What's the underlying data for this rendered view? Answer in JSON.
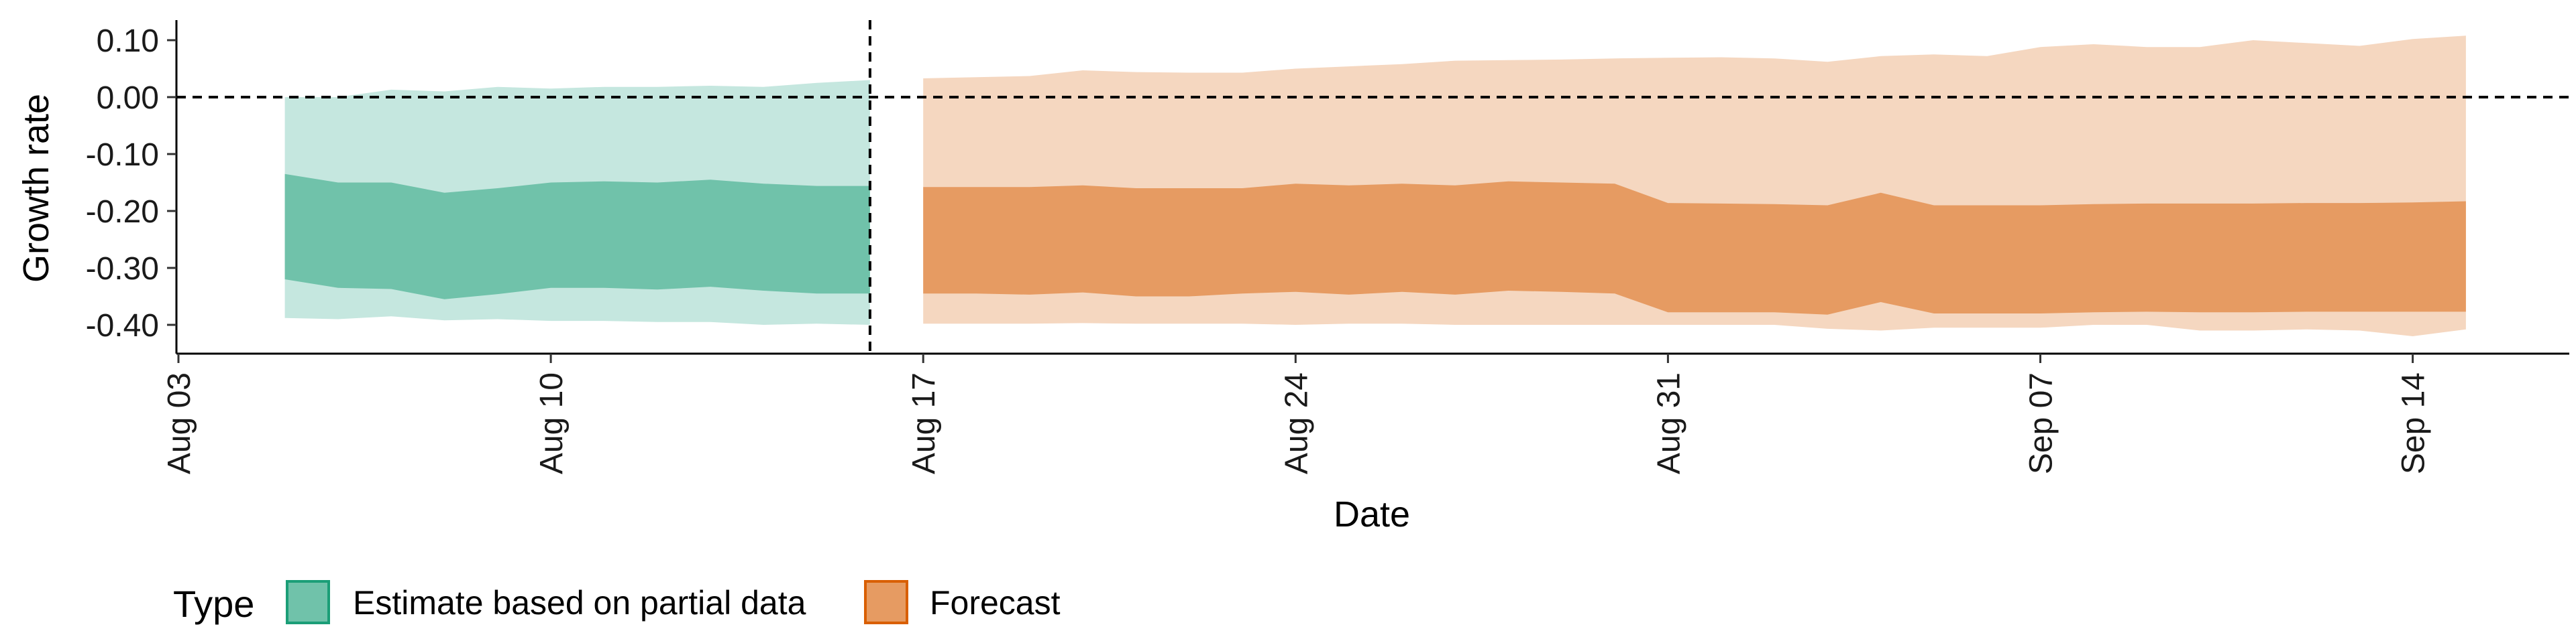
{
  "chart_data": {
    "type": "area",
    "xlabel": "Date",
    "ylabel": "Growth rate",
    "x_ticks": [
      "Aug 03",
      "Aug 10",
      "Aug 17",
      "Aug 24",
      "Aug 31",
      "Sep 07",
      "Sep 14"
    ],
    "y_ticks": [
      "0.10",
      "0.00",
      "-0.10",
      "-0.20",
      "-0.30",
      "-0.40"
    ],
    "ylim": [
      -0.45,
      0.135
    ],
    "xlim": [
      "2020-08-03",
      "2020-09-16"
    ],
    "reference_lines": {
      "horizontal_y": 0,
      "vertical_date": "2020-08-16"
    },
    "legend": {
      "title": "Type",
      "position": "bottom-left",
      "entries": [
        "Estimate based on partial data",
        "Forecast"
      ]
    },
    "series": [
      {
        "name": "Estimate based on partial data",
        "color_inner": "#70c2aa",
        "color_outer": "#c5e7df",
        "color_border": "#1b9e77",
        "x": [
          "2020-08-05",
          "2020-08-06",
          "2020-08-07",
          "2020-08-08",
          "2020-08-09",
          "2020-08-10",
          "2020-08-11",
          "2020-08-12",
          "2020-08-13",
          "2020-08-14",
          "2020-08-15",
          "2020-08-16"
        ],
        "outer_upper": [
          0.0,
          0.0,
          0.013,
          0.01,
          0.018,
          0.015,
          0.018,
          0.018,
          0.02,
          0.018,
          0.025,
          0.03
        ],
        "inner_upper": [
          -0.135,
          -0.15,
          -0.15,
          -0.168,
          -0.16,
          -0.15,
          -0.148,
          -0.15,
          -0.145,
          -0.152,
          -0.156,
          -0.156
        ],
        "inner_lower": [
          -0.32,
          -0.335,
          -0.337,
          -0.355,
          -0.346,
          -0.335,
          -0.335,
          -0.338,
          -0.333,
          -0.34,
          -0.345,
          -0.345
        ],
        "outer_lower": [
          -0.388,
          -0.39,
          -0.385,
          -0.392,
          -0.39,
          -0.393,
          -0.393,
          -0.395,
          -0.395,
          -0.4,
          -0.398,
          -0.4
        ]
      },
      {
        "name": "Forecast",
        "color_inner": "#e69b62",
        "color_outer": "#f5d7c0",
        "color_border": "#d95f02",
        "x": [
          "2020-08-17",
          "2020-08-18",
          "2020-08-19",
          "2020-08-20",
          "2020-08-21",
          "2020-08-22",
          "2020-08-23",
          "2020-08-24",
          "2020-08-25",
          "2020-08-26",
          "2020-08-27",
          "2020-08-28",
          "2020-08-29",
          "2020-08-30",
          "2020-08-31",
          "2020-09-01",
          "2020-09-02",
          "2020-09-03",
          "2020-09-04",
          "2020-09-05",
          "2020-09-06",
          "2020-09-07",
          "2020-09-08",
          "2020-09-09",
          "2020-09-10",
          "2020-09-11",
          "2020-09-12",
          "2020-09-13",
          "2020-09-14",
          "2020-09-15"
        ],
        "outer_upper": [
          0.033,
          0.035,
          0.037,
          0.047,
          0.044,
          0.043,
          0.043,
          0.05,
          0.054,
          0.058,
          0.064,
          0.065,
          0.066,
          0.068,
          0.069,
          0.07,
          0.068,
          0.062,
          0.072,
          0.075,
          0.072,
          0.088,
          0.093,
          0.088,
          0.088,
          0.1,
          0.095,
          0.09,
          0.102,
          0.108
        ],
        "inner_upper": [
          -0.158,
          -0.158,
          -0.158,
          -0.155,
          -0.16,
          -0.16,
          -0.16,
          -0.152,
          -0.155,
          -0.152,
          -0.155,
          -0.148,
          -0.15,
          -0.152,
          -0.186,
          -0.187,
          -0.188,
          -0.19,
          -0.168,
          -0.19,
          -0.19,
          -0.19,
          -0.188,
          -0.187,
          -0.187,
          -0.187,
          -0.186,
          -0.186,
          -0.185,
          -0.183
        ],
        "inner_lower": [
          -0.345,
          -0.345,
          -0.347,
          -0.343,
          -0.35,
          -0.35,
          -0.345,
          -0.342,
          -0.347,
          -0.342,
          -0.347,
          -0.34,
          -0.342,
          -0.345,
          -0.378,
          -0.378,
          -0.378,
          -0.382,
          -0.36,
          -0.38,
          -0.38,
          -0.38,
          -0.378,
          -0.377,
          -0.378,
          -0.378,
          -0.377,
          -0.377,
          -0.377,
          -0.377
        ],
        "outer_lower": [
          -0.398,
          -0.398,
          -0.398,
          -0.397,
          -0.398,
          -0.398,
          -0.398,
          -0.4,
          -0.398,
          -0.398,
          -0.4,
          -0.4,
          -0.4,
          -0.4,
          -0.4,
          -0.4,
          -0.4,
          -0.407,
          -0.41,
          -0.405,
          -0.405,
          -0.405,
          -0.4,
          -0.4,
          -0.41,
          -0.41,
          -0.408,
          -0.41,
          -0.42,
          -0.408
        ]
      }
    ]
  }
}
